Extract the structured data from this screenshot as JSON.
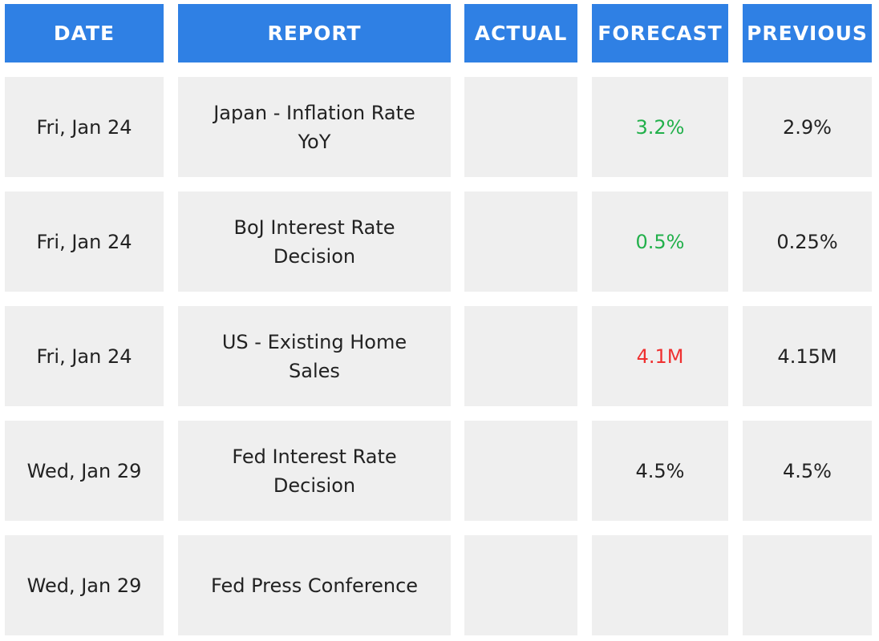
{
  "chart_data": {
    "type": "table",
    "columns": [
      "DATE",
      "REPORT",
      "ACTUAL",
      "FORECAST",
      "PREVIOUS"
    ],
    "rows": [
      {
        "date": "Fri, Jan 24",
        "report": "Japan - Inflation Rate YoY",
        "actual": "",
        "forecast": "3.2%",
        "forecast_color": "#22b04b",
        "previous": "2.9%"
      },
      {
        "date": "Fri, Jan 24",
        "report": "BoJ Interest Rate Decision",
        "actual": "",
        "forecast": "0.5%",
        "forecast_color": "#22b04b",
        "previous": "0.25%"
      },
      {
        "date": "Fri, Jan 24",
        "report": "US - Existing Home Sales",
        "actual": "",
        "forecast": "4.1M",
        "forecast_color": "#ef3030",
        "previous": "4.15M"
      },
      {
        "date": "Wed, Jan 29",
        "report": "Fed Interest Rate Decision",
        "actual": "",
        "forecast": "4.5%",
        "forecast_color": "#222222",
        "previous": "4.5%"
      },
      {
        "date": "Wed, Jan 29",
        "report": "Fed Press Conference",
        "actual": "",
        "forecast": "",
        "forecast_color": "#222222",
        "previous": ""
      }
    ]
  },
  "colors": {
    "header_bg": "#2f80e4",
    "header_text": "#ffffff",
    "cell_bg": "#efefef",
    "cell_text": "#222222",
    "positive": "#22b04b",
    "negative": "#ef3030"
  }
}
